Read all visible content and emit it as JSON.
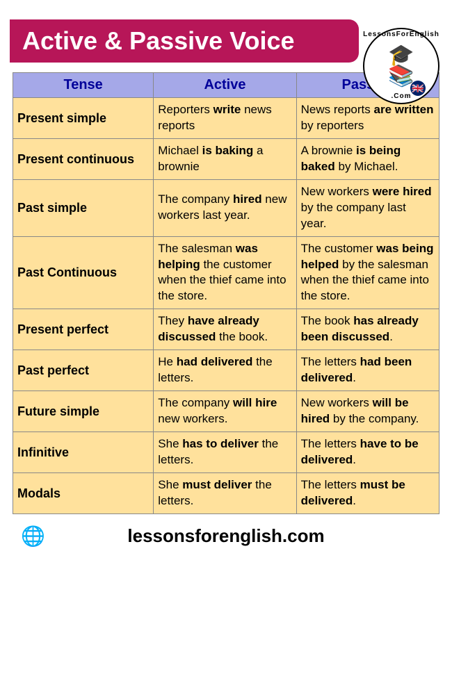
{
  "title": "Active & Passive Voice",
  "logo": {
    "top_text": "LessonsForEnglish",
    "bottom_text": ".Com",
    "books_glyph": "📚",
    "cap_glyph": "🎓",
    "flag_glyph": "🇬🇧"
  },
  "table": {
    "header_bg": "#a5a8e8",
    "header_fg": "#000099",
    "cell_bg": "#ffe19c",
    "border_color": "#888888",
    "columns": [
      "Tense",
      "Active",
      "Passive"
    ],
    "col_widths": [
      "33%",
      "33.5%",
      "33.5%"
    ],
    "rows": [
      {
        "tense": "Present simple",
        "active": "Reporters <b>write</b> news reports",
        "passive": "News reports <b>are written</b> by reporters"
      },
      {
        "tense": "Present continuous",
        "active": "Michael <b>is baking</b> a brownie",
        "passive": "A brownie <b>is being baked</b> by  Michael."
      },
      {
        "tense": "Past simple",
        "active": "The company <b>hired</b> new workers last year.",
        "passive": "New workers <b>were hired</b> by the company last year."
      },
      {
        "tense": "Past Continuous",
        "active": "The salesman <b>was helping</b> the customer when the thief came into the store.",
        "passive": "The customer <b>was being helped</b> by the salesman when the thief came into the store."
      },
      {
        "tense": "Present perfect",
        "active": "They <b>have already disc</b><b>ussed</b> the book.",
        "passive": "The book <b>has already been discussed</b>."
      },
      {
        "tense": "Past perfect",
        "active": "He <b>had delivered</b> the letters.",
        "passive": "The letters <b>had been delivered</b>."
      },
      {
        "tense": "Future simple",
        "active": "The company <b>will hire</b> new workers.",
        "passive": "New workers <b>will be hired</b> by the company."
      },
      {
        "tense": "Infinitive",
        "active": "She <b>has to deliver</b> the letters.",
        "passive": "The letters <b>have to be deliv</b><b>ered</b>."
      },
      {
        "tense": "Modals",
        "active": "She <b>must deliver</b> the letters.",
        "passive": "The letters <b>must be delivered</b>."
      }
    ]
  },
  "footer": {
    "url": "lessonsforenglish.com",
    "icon_glyph": "🌐",
    "icon_color": "#cc1a4b"
  },
  "banner_bg": "#b71658",
  "banner_fg": "#ffffff"
}
